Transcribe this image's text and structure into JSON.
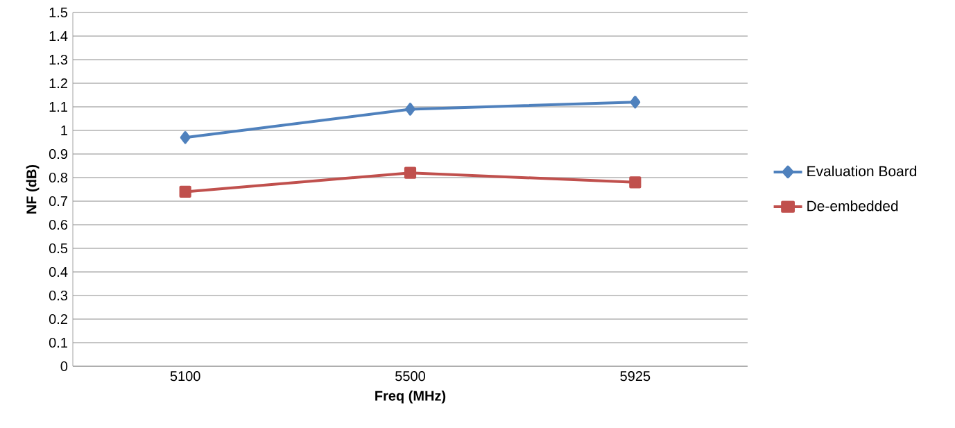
{
  "chart_data": {
    "type": "line",
    "xlabel": "Freq (MHz)",
    "ylabel": "NF (dB)",
    "categories": [
      "5100",
      "5500",
      "5925"
    ],
    "series": [
      {
        "name": "Evaluation Board",
        "color": "#4f81bd",
        "marker": "diamond",
        "values": [
          0.97,
          1.09,
          1.12
        ]
      },
      {
        "name": "De-embedded",
        "color": "#c0504d",
        "marker": "square",
        "values": [
          0.74,
          0.82,
          0.78
        ]
      }
    ],
    "ylim": [
      0,
      1.5
    ],
    "yticks": [
      0,
      0.1,
      0.2,
      0.3,
      0.4,
      0.5,
      0.6,
      0.7,
      0.8,
      0.9,
      1,
      1.1,
      1.2,
      1.3,
      1.4,
      1.5
    ],
    "grid": "y",
    "legend": "right",
    "line_style": "solid"
  }
}
